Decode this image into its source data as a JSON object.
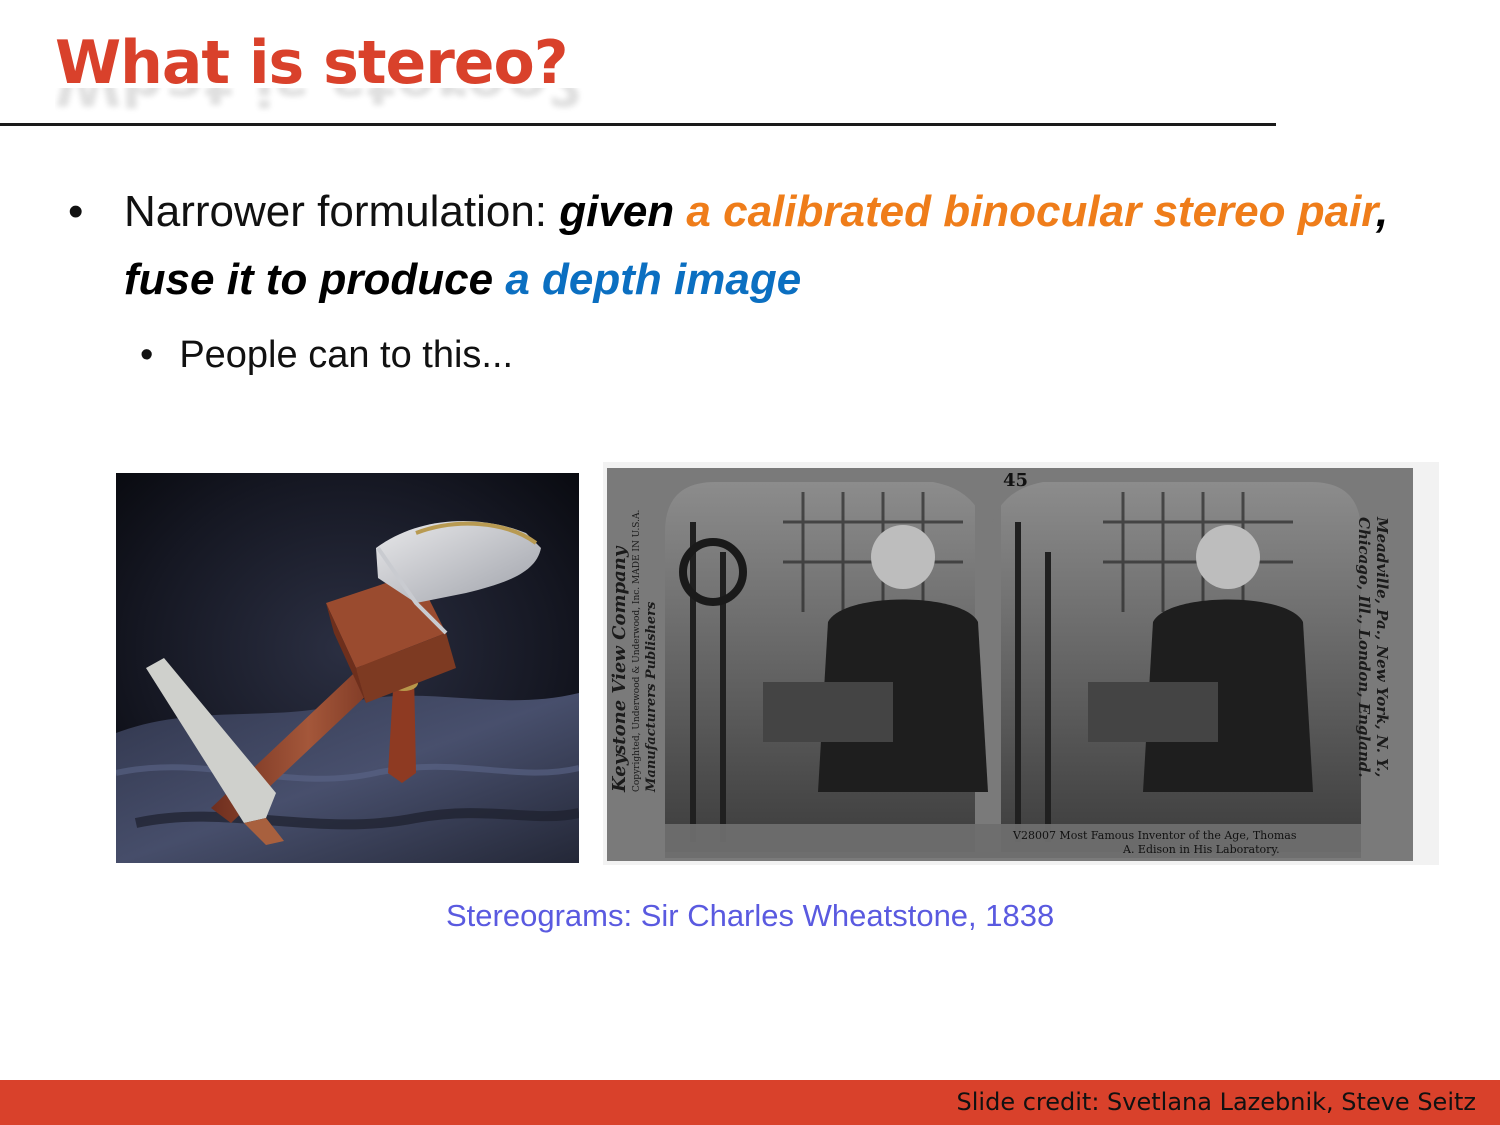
{
  "slide": {
    "title": "What is stereo?",
    "bullet1": {
      "marker": "•",
      "part1": "Narrower formulation: ",
      "part2": "given ",
      "part3": "a calibrated binocular stereo pair",
      "part4": ", fuse it to produce ",
      "part5": "a depth image"
    },
    "bullet2": {
      "marker": "•",
      "text": "People can to this..."
    },
    "photo_stereoscope": {
      "icon": "stereoscope-viewer-photo"
    },
    "photo_stereocard": {
      "icon": "stereograph-card-photo",
      "number": "45",
      "left_side": "Keystone View Company",
      "left_side_small": "Copyrighted, Underwood & Underwood, Inc. MADE IN U.S.A.",
      "left_side_bottom": "Manufacturers  Publishers",
      "right_side_1": "Meadville, Pa., New York, N. Y.,",
      "right_side_2": "Chicago, Ill., London, England.",
      "caption_1": "V28007 Most Famous Inventor of the Age, Thomas",
      "caption_2": "A. Edison in His Laboratory."
    },
    "figure_caption": "Stereograms: Sir Charles Wheatstone, 1838",
    "footer_credit": "Slide credit: Svetlana Lazebnik, Steve Seitz"
  },
  "colors": {
    "title": "#d9412b",
    "accent_orange": "#ef7d1a",
    "accent_blue": "#0b6fc1",
    "caption": "#5a5ae0",
    "footer_bar": "#d9412b"
  }
}
